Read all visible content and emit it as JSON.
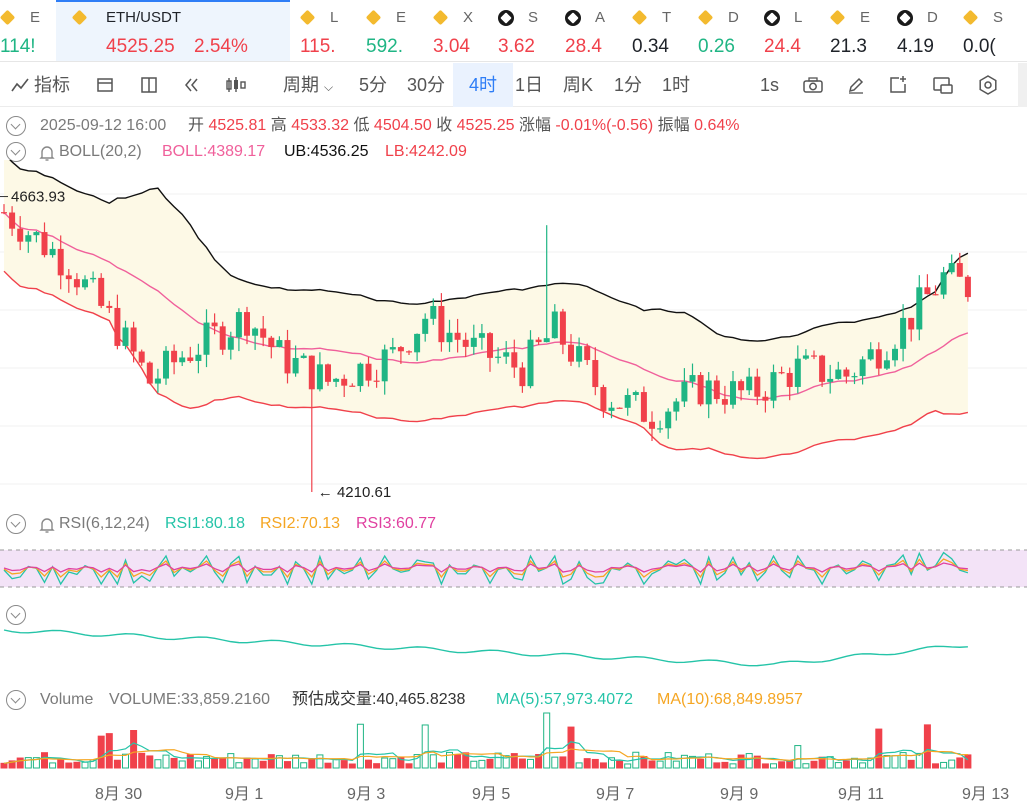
{
  "ticker": [
    {
      "name": "E",
      "price": "114!",
      "icon": "bn",
      "tone": "green",
      "x": 4
    },
    {
      "name": "ETH/USDT",
      "price": "4525.25",
      "change": "2.54%",
      "icon": "bn",
      "tone": "red",
      "x": 76
    },
    {
      "name": "L",
      "price": "115.",
      "icon": "bn",
      "tone": "red",
      "x": 304
    },
    {
      "name": "E",
      "price": "592.",
      "icon": "bn",
      "tone": "green",
      "x": 370
    },
    {
      "name": "X",
      "price": "3.04",
      "icon": "bn",
      "tone": "red",
      "x": 437
    },
    {
      "name": "S",
      "price": "3.62",
      "icon": "bk",
      "tone": "red",
      "x": 502
    },
    {
      "name": "A",
      "price": "28.4",
      "icon": "bk",
      "tone": "red",
      "x": 569
    },
    {
      "name": "T",
      "price": "0.34",
      "icon": "bn",
      "tone": "dark",
      "x": 636
    },
    {
      "name": "D",
      "price": "0.26",
      "icon": "bn",
      "tone": "green",
      "x": 702
    },
    {
      "name": "L",
      "price": "24.4",
      "icon": "bk",
      "tone": "red",
      "x": 768
    },
    {
      "name": "E",
      "price": "21.3",
      "icon": "bn",
      "tone": "dark",
      "x": 834
    },
    {
      "name": "D",
      "price": "4.19",
      "icon": "bk",
      "tone": "dark",
      "x": 901
    },
    {
      "name": "S",
      "price": "0.0(",
      "icon": "bn",
      "tone": "dark",
      "x": 967
    }
  ],
  "toolbar": {
    "indicators": "指标",
    "period": "周期",
    "intervals": [
      "5分",
      "30分",
      "4时",
      "1日",
      "周K",
      "1分",
      "1时"
    ],
    "selected_interval": "4时",
    "realtime": "1s"
  },
  "ohlc": {
    "time": "2025-09-12 16:00",
    "open_label": "开",
    "open": "4525.81",
    "high_label": "高",
    "high": "4533.32",
    "low_label": "低",
    "low": "4504.50",
    "close_label": "收",
    "close": "4525.25",
    "change_label": "涨幅",
    "change": "-0.01%(-0.56)",
    "amplitude_label": "振幅",
    "amplitude": "0.64%"
  },
  "boll": {
    "name": "BOLL(20,2)",
    "mid": "BOLL:4389.17",
    "ub": "UB:4536.25",
    "lb": "LB:4242.09"
  },
  "price_marks": {
    "high": "4663.93",
    "low": "4210.61"
  },
  "rsi": {
    "name": "RSI(6,12,24)",
    "rsi1": "RSI1:80.18",
    "rsi2": "RSI2:70.13",
    "rsi3": "RSI3:60.77"
  },
  "volume": {
    "name": "Volume",
    "value": "VOLUME:33,859.2160",
    "est": "预估成交量:40,465.8238",
    "ma5": "MA(5):57,973.4072",
    "ma10": "MA(10):68,849.8957"
  },
  "xaxis": [
    "8月 30",
    "9月 1",
    "9月 3",
    "9月 5",
    "9月 7",
    "9月 9",
    "9月 11",
    "9月 13"
  ],
  "colors": {
    "up": "#1fb584",
    "down": "#f0414b",
    "boll_ub": "#111111",
    "boll_mid": "#f0609b",
    "boll_lb": "#f0414b",
    "rsi1": "#25c4a8",
    "rsi2": "#f5a623",
    "rsi3": "#e040a0",
    "ma5": "#25c4a8",
    "ma10": "#f5a623",
    "accent": "#2e7df6"
  }
}
